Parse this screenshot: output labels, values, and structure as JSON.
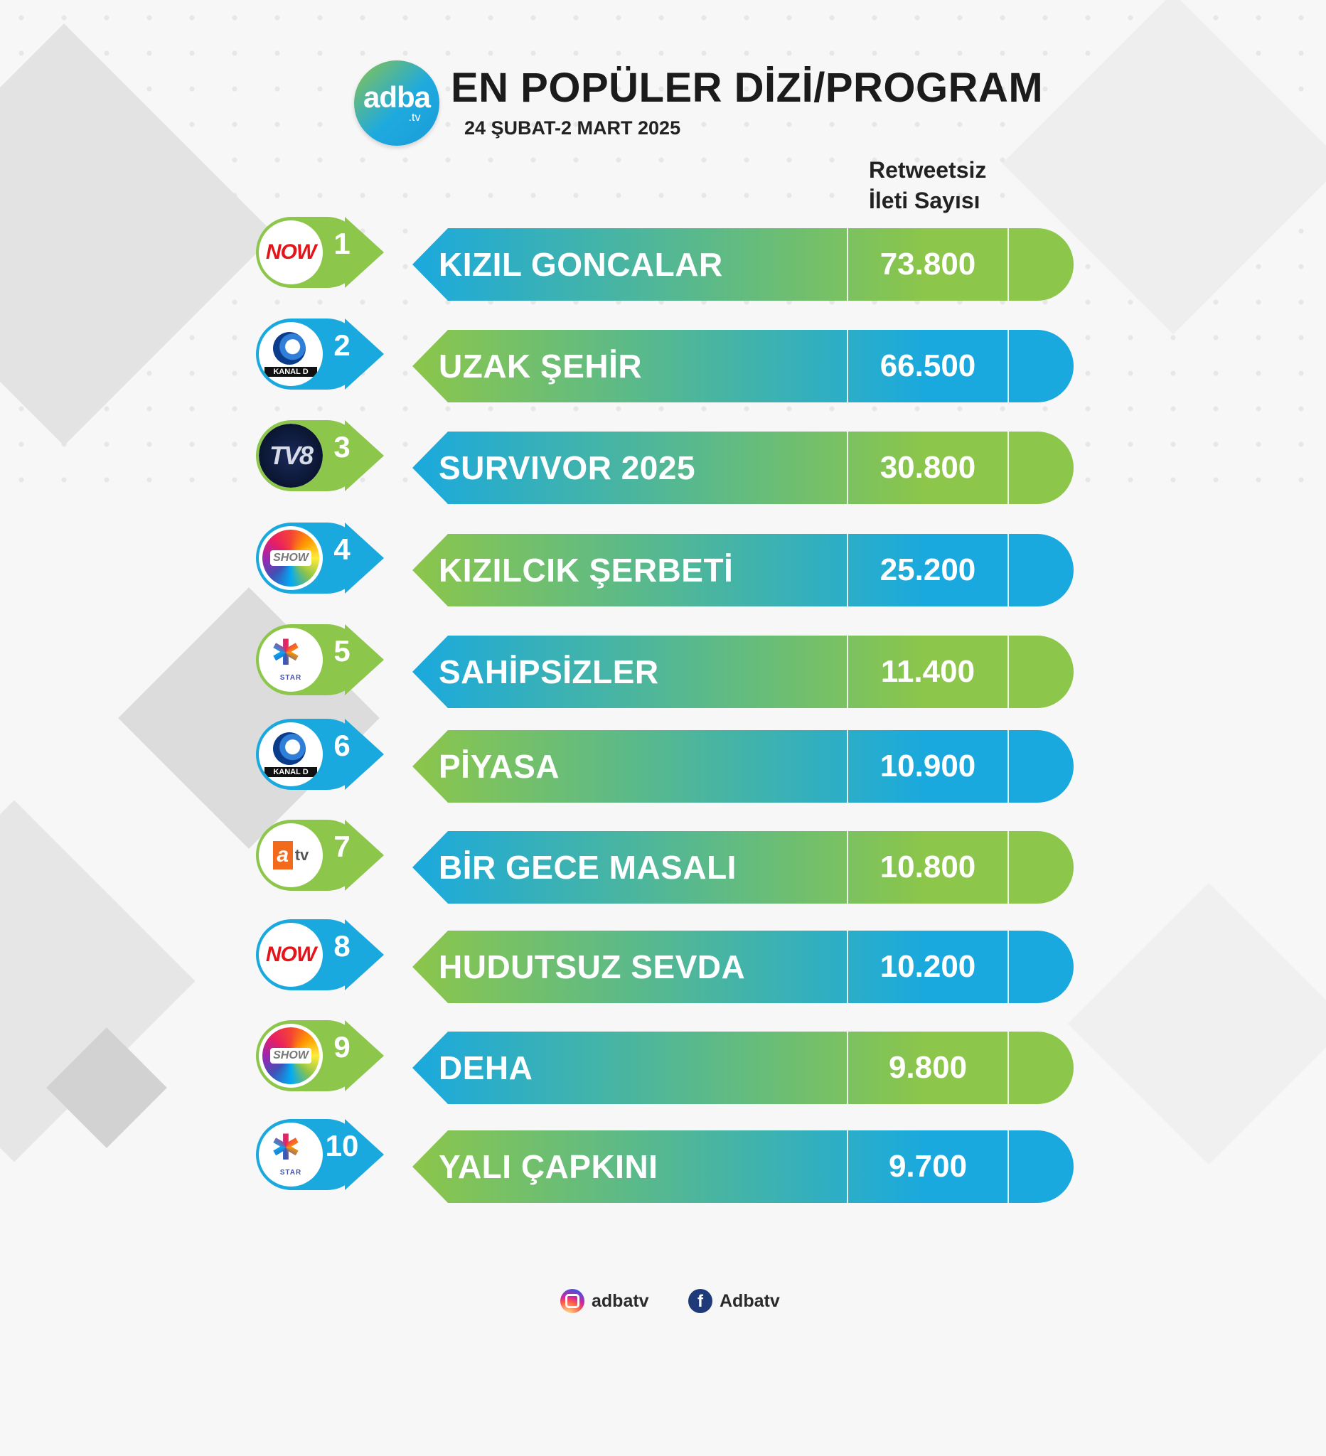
{
  "header": {
    "logo_text": "adba",
    "logo_sub": ".tv",
    "title": "EN POPÜLER DİZİ/PROGRAM",
    "date_range": "24 ŞUBAT-2 MART 2025",
    "column_header_line1": "Retweetsiz",
    "column_header_line2": "İleti Sayısı"
  },
  "rows": [
    {
      "rank": "1",
      "channel": "NOW",
      "channel_logo_text": "NOW",
      "name": "KIZIL GONCALAR",
      "value": "73.800",
      "start": "#1aa9de",
      "end": "#8cc64a"
    },
    {
      "rank": "2",
      "channel": "KANAL D",
      "channel_logo_text": "KANAL D",
      "name": "UZAK ŞEHİR",
      "value": "66.500",
      "start": "#8cc64a",
      "end": "#1aa9de"
    },
    {
      "rank": "3",
      "channel": "TV8",
      "channel_logo_text": "TV8",
      "name": "SURVIVOR 2025",
      "value": "30.800",
      "start": "#1aa9de",
      "end": "#8cc64a"
    },
    {
      "rank": "4",
      "channel": "SHOW",
      "channel_logo_text": "SHOW",
      "name": "KIZILCIK ŞERBETİ",
      "value": "25.200",
      "start": "#8cc64a",
      "end": "#1aa9de"
    },
    {
      "rank": "5",
      "channel": "STAR",
      "channel_logo_text": "STAR",
      "name": "SAHİPSİZLER",
      "value": "11.400",
      "start": "#1aa9de",
      "end": "#8cc64a"
    },
    {
      "rank": "6",
      "channel": "KANAL D",
      "channel_logo_text": "KANAL D",
      "name": "PİYASA",
      "value": "10.900",
      "start": "#8cc64a",
      "end": "#1aa9de"
    },
    {
      "rank": "7",
      "channel": "ATV",
      "channel_logo_text": "atv",
      "name": "BİR GECE MASALI",
      "value": "10.800",
      "start": "#1aa9de",
      "end": "#8cc64a"
    },
    {
      "rank": "8",
      "channel": "NOW",
      "channel_logo_text": "NOW",
      "name": "HUDUTSUZ SEVDA",
      "value": "10.200",
      "start": "#8cc64a",
      "end": "#1aa9de"
    },
    {
      "rank": "9",
      "channel": "SHOW",
      "channel_logo_text": "SHOW",
      "name": "DEHA",
      "value": "9.800",
      "start": "#1aa9de",
      "end": "#8cc64a"
    },
    {
      "rank": "10",
      "channel": "STAR",
      "channel_logo_text": "STAR",
      "name": "YALI ÇAPKINI",
      "value": "9.700",
      "start": "#8cc64a",
      "end": "#1aa9de"
    }
  ],
  "footer": {
    "instagram_icon": "instagram-icon",
    "instagram_handle": "adbatv",
    "facebook_icon": "facebook-icon",
    "facebook_handle": "Adbatv"
  },
  "colors": {
    "blue": "#1aa9de",
    "green": "#8cc64a",
    "title_text": "#1b1b1b"
  }
}
